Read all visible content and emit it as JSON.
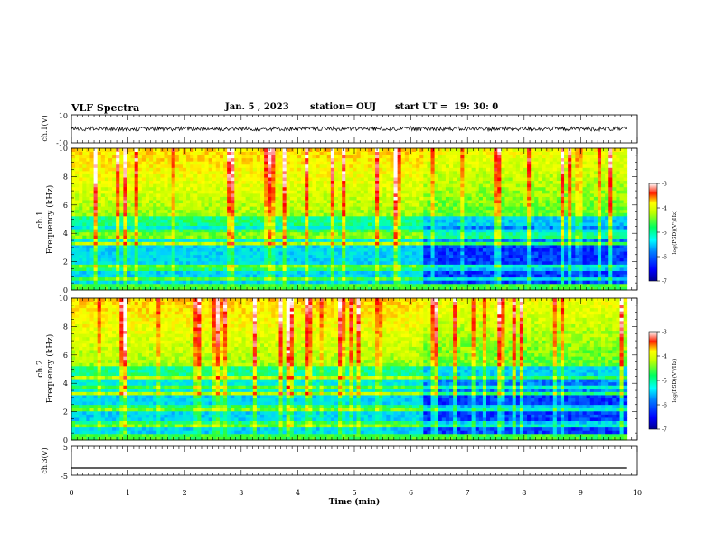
{
  "header": {
    "title": "VLF Spectra",
    "date": "Jan. 5 , 2023",
    "station": "station= OUJ",
    "start": "start UT =  19: 30: 0"
  },
  "chart_data": [
    {
      "type": "line",
      "panel": "ch1-waveform",
      "ylabel": "ch.1(V)",
      "ylim": [
        -10,
        10
      ],
      "yticks": [
        "10",
        "-10"
      ],
      "xlim": [
        0,
        10
      ],
      "trace_center": 0,
      "trace_amplitude": 1.5,
      "trace_end_min": 9.82
    },
    {
      "type": "heatmap",
      "panel": "ch1-spectrogram",
      "ylabel": "ch.1 Frequency (kHz)",
      "ylim": [
        0,
        10
      ],
      "yticks": [
        "0",
        "2",
        "4",
        "6",
        "8",
        "10"
      ],
      "xlim": [
        0,
        10
      ],
      "data_end_min": 9.82,
      "colorbar": {
        "label": "log(PSD)(V²/Hz)",
        "range": [
          -7,
          -3
        ],
        "ticks": [
          "-3",
          "-4",
          "-5",
          "-6",
          "-7"
        ]
      },
      "level_description": "High power (green-yellow-red, log PSD ≈ -4) above ~5 kHz with strong vertical spherics; lower power (blue, ≈ -6) below ~5 kHz; after ~6.2 min the lower band drops to ≈ -6.5 (dark blue); horizontal lines of interference throughout"
    },
    {
      "type": "heatmap",
      "panel": "ch2-spectrogram",
      "ylabel": "ch.2 Frequency (kHz)",
      "ylim": [
        0,
        10
      ],
      "yticks": [
        "0",
        "2",
        "4",
        "6",
        "8",
        "10"
      ],
      "xlim": [
        0,
        10
      ],
      "data_end_min": 9.82,
      "colorbar": {
        "label": "log(PSD)(V²/Hz)",
        "range": [
          -7,
          -3
        ],
        "ticks": [
          "-3",
          "-4",
          "-5",
          "-6",
          "-7"
        ]
      },
      "level_description": "Similar to ch.1: green/yellow above ~5 kHz, blue-cyan below; darker blue after ~6.2 min"
    },
    {
      "type": "line",
      "panel": "ch3-waveform",
      "ylabel": "ch.3(V)",
      "ylim": [
        -5,
        5
      ],
      "yticks": [
        "5",
        "-5"
      ],
      "xlim": [
        0,
        10
      ],
      "trace_value": -2.5,
      "trace_end_min": 9.82
    }
  ],
  "xaxis": {
    "label": "Time (min)",
    "ticks": [
      "0",
      "1",
      "2",
      "3",
      "4",
      "5",
      "6",
      "7",
      "8",
      "9",
      "10"
    ]
  },
  "colors": {
    "colormap": [
      "#00008f",
      "#0000ff",
      "#0060ff",
      "#00d0ff",
      "#00ffc0",
      "#30ff30",
      "#c0ff00",
      "#ffff00",
      "#ff9000",
      "#ff0000",
      "#ffffff"
    ],
    "axis": "#000000",
    "trace": "#000000"
  }
}
